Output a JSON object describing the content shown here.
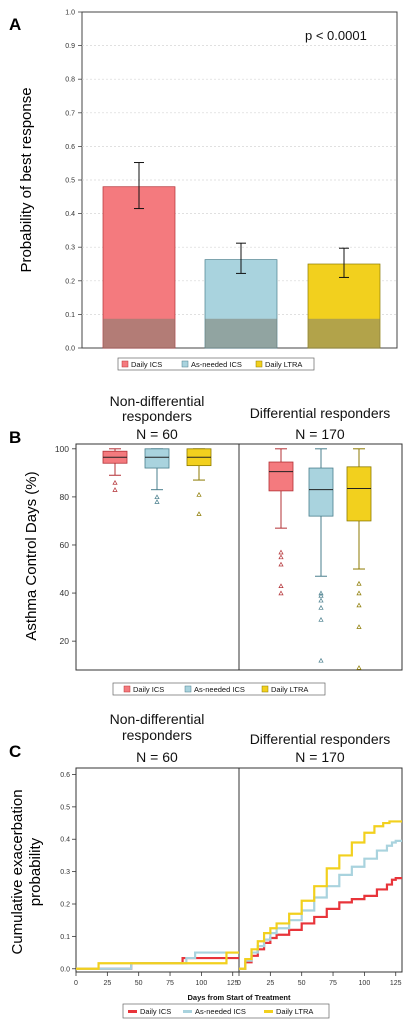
{
  "colors": {
    "daily_ics": "#f47a7e",
    "as_needed_ics": "#a9d3de",
    "daily_ltra": "#f2d01e",
    "grid": "#d6d6d6",
    "base_overlay": "#7d7d70"
  },
  "chart_data": [
    {
      "panel": "A",
      "type": "bar",
      "ylabel": "Probability of best response",
      "ylim": [
        0,
        1
      ],
      "yticks": [
        "0.0",
        "0.1",
        "0.2",
        "0.3",
        "0.4",
        "0.5",
        "0.6",
        "0.7",
        "0.8",
        "0.9",
        "1.0"
      ],
      "annotation": "p < 0.0001",
      "grid": true,
      "categories": [
        "Daily ICS",
        "As-needed ICS",
        "Daily LTRA"
      ],
      "values": [
        0.48,
        0.263,
        0.25
      ],
      "error_low": [
        0.415,
        0.222,
        0.21
      ],
      "error_high": [
        0.552,
        0.312,
        0.297
      ],
      "base_values": [
        0.087,
        0.087,
        0.087
      ],
      "legend": [
        "Daily ICS",
        "As-needed ICS",
        "Daily LTRA"
      ],
      "legend_position": "bottom"
    },
    {
      "panel": "B",
      "type": "box",
      "ylabel": "Asthma Control Days (%)",
      "ylim": [
        8,
        102
      ],
      "yticks": [
        "20",
        "40",
        "60",
        "80",
        "100"
      ],
      "group_headers": [
        {
          "title": "Non-differential responders",
          "n": "N = 60"
        },
        {
          "title": "Differential responders",
          "n": "N = 170"
        }
      ],
      "series": [
        "Daily ICS",
        "As-needed ICS",
        "Daily LTRA"
      ],
      "groups": [
        {
          "boxes": [
            {
              "q1": 94,
              "median": 96.5,
              "q3": 99,
              "whisker_low": 89,
              "whisker_high": 100,
              "outliers": [
                86,
                83
              ]
            },
            {
              "q1": 92,
              "median": 96.5,
              "q3": 100,
              "whisker_low": 83,
              "whisker_high": 100,
              "outliers": [
                80,
                78
              ]
            },
            {
              "q1": 93,
              "median": 96.5,
              "q3": 100,
              "whisker_low": 87,
              "whisker_high": 100,
              "outliers": [
                81,
                73
              ]
            }
          ]
        },
        {
          "boxes": [
            {
              "q1": 82.5,
              "median": 90.5,
              "q3": 94.5,
              "whisker_low": 67,
              "whisker_high": 100,
              "outliers": [
                57,
                55,
                52,
                43,
                40
              ]
            },
            {
              "q1": 72,
              "median": 83,
              "q3": 92,
              "whisker_low": 47,
              "whisker_high": 100,
              "outliers": [
                40,
                39,
                37,
                34,
                29,
                12
              ]
            },
            {
              "q1": 70,
              "median": 83.5,
              "q3": 92.5,
              "whisker_low": 50,
              "whisker_high": 100,
              "outliers": [
                44,
                40,
                35,
                26,
                9
              ]
            }
          ]
        }
      ],
      "legend": [
        "Daily ICS",
        "As-needed ICS",
        "Daily LTRA"
      ],
      "legend_position": "bottom"
    },
    {
      "panel": "C",
      "type": "line",
      "ylabel": "Cumulative exacerbation probability",
      "xlabel": "Days from Start of Treatment",
      "ylim": [
        -0.01,
        0.62
      ],
      "xlim": [
        0,
        130
      ],
      "yticks": [
        "0.0",
        "0.1",
        "0.2",
        "0.3",
        "0.4",
        "0.5",
        "0.6"
      ],
      "xticks": [
        "0",
        "25",
        "50",
        "75",
        "100",
        "125"
      ],
      "group_headers": [
        {
          "title": "Non-differential responders",
          "n": "N = 60"
        },
        {
          "title": "Differential responders",
          "n": "N = 170"
        }
      ],
      "groups": [
        {
          "series": [
            {
              "name": "Daily ICS",
              "x": [
                0,
                44,
                44,
                85,
                85,
                130
              ],
              "y": [
                0,
                0,
                0.017,
                0.017,
                0.033,
                0.033
              ]
            },
            {
              "name": "As-needed ICS",
              "x": [
                0,
                44,
                44,
                88,
                88,
                95,
                95,
                130
              ],
              "y": [
                0,
                0,
                0.017,
                0.017,
                0.033,
                0.033,
                0.05,
                0.05
              ]
            },
            {
              "name": "Daily LTRA",
              "x": [
                0,
                18,
                18,
                120,
                120,
                130
              ],
              "y": [
                0,
                0,
                0.017,
                0.017,
                0.05,
                0.05
              ]
            }
          ]
        },
        {
          "series": [
            {
              "name": "Daily ICS",
              "x": [
                0,
                5,
                10,
                15,
                20,
                25,
                30,
                40,
                50,
                60,
                70,
                80,
                90,
                100,
                110,
                118,
                122,
                125,
                130
              ],
              "y": [
                0,
                0.02,
                0.04,
                0.06,
                0.08,
                0.095,
                0.105,
                0.12,
                0.14,
                0.16,
                0.185,
                0.205,
                0.215,
                0.225,
                0.245,
                0.26,
                0.275,
                0.28,
                0.28
              ]
            },
            {
              "name": "As-needed ICS",
              "x": [
                0,
                5,
                10,
                15,
                20,
                25,
                30,
                40,
                50,
                60,
                70,
                80,
                90,
                100,
                110,
                118,
                122,
                125,
                130
              ],
              "y": [
                0,
                0.025,
                0.05,
                0.07,
                0.09,
                0.11,
                0.125,
                0.15,
                0.18,
                0.22,
                0.255,
                0.29,
                0.315,
                0.34,
                0.365,
                0.38,
                0.39,
                0.395,
                0.395
              ]
            },
            {
              "name": "Daily LTRA",
              "x": [
                0,
                5,
                10,
                15,
                20,
                25,
                30,
                40,
                50,
                60,
                70,
                80,
                90,
                100,
                108,
                115,
                120,
                125,
                130
              ],
              "y": [
                0,
                0.03,
                0.06,
                0.085,
                0.11,
                0.125,
                0.14,
                0.17,
                0.21,
                0.255,
                0.31,
                0.35,
                0.39,
                0.42,
                0.44,
                0.45,
                0.455,
                0.455,
                0.455
              ]
            }
          ]
        }
      ],
      "legend": [
        "Daily ICS",
        "As-needed ICS",
        "Daily LTRA"
      ],
      "legend_position": "bottom"
    }
  ]
}
